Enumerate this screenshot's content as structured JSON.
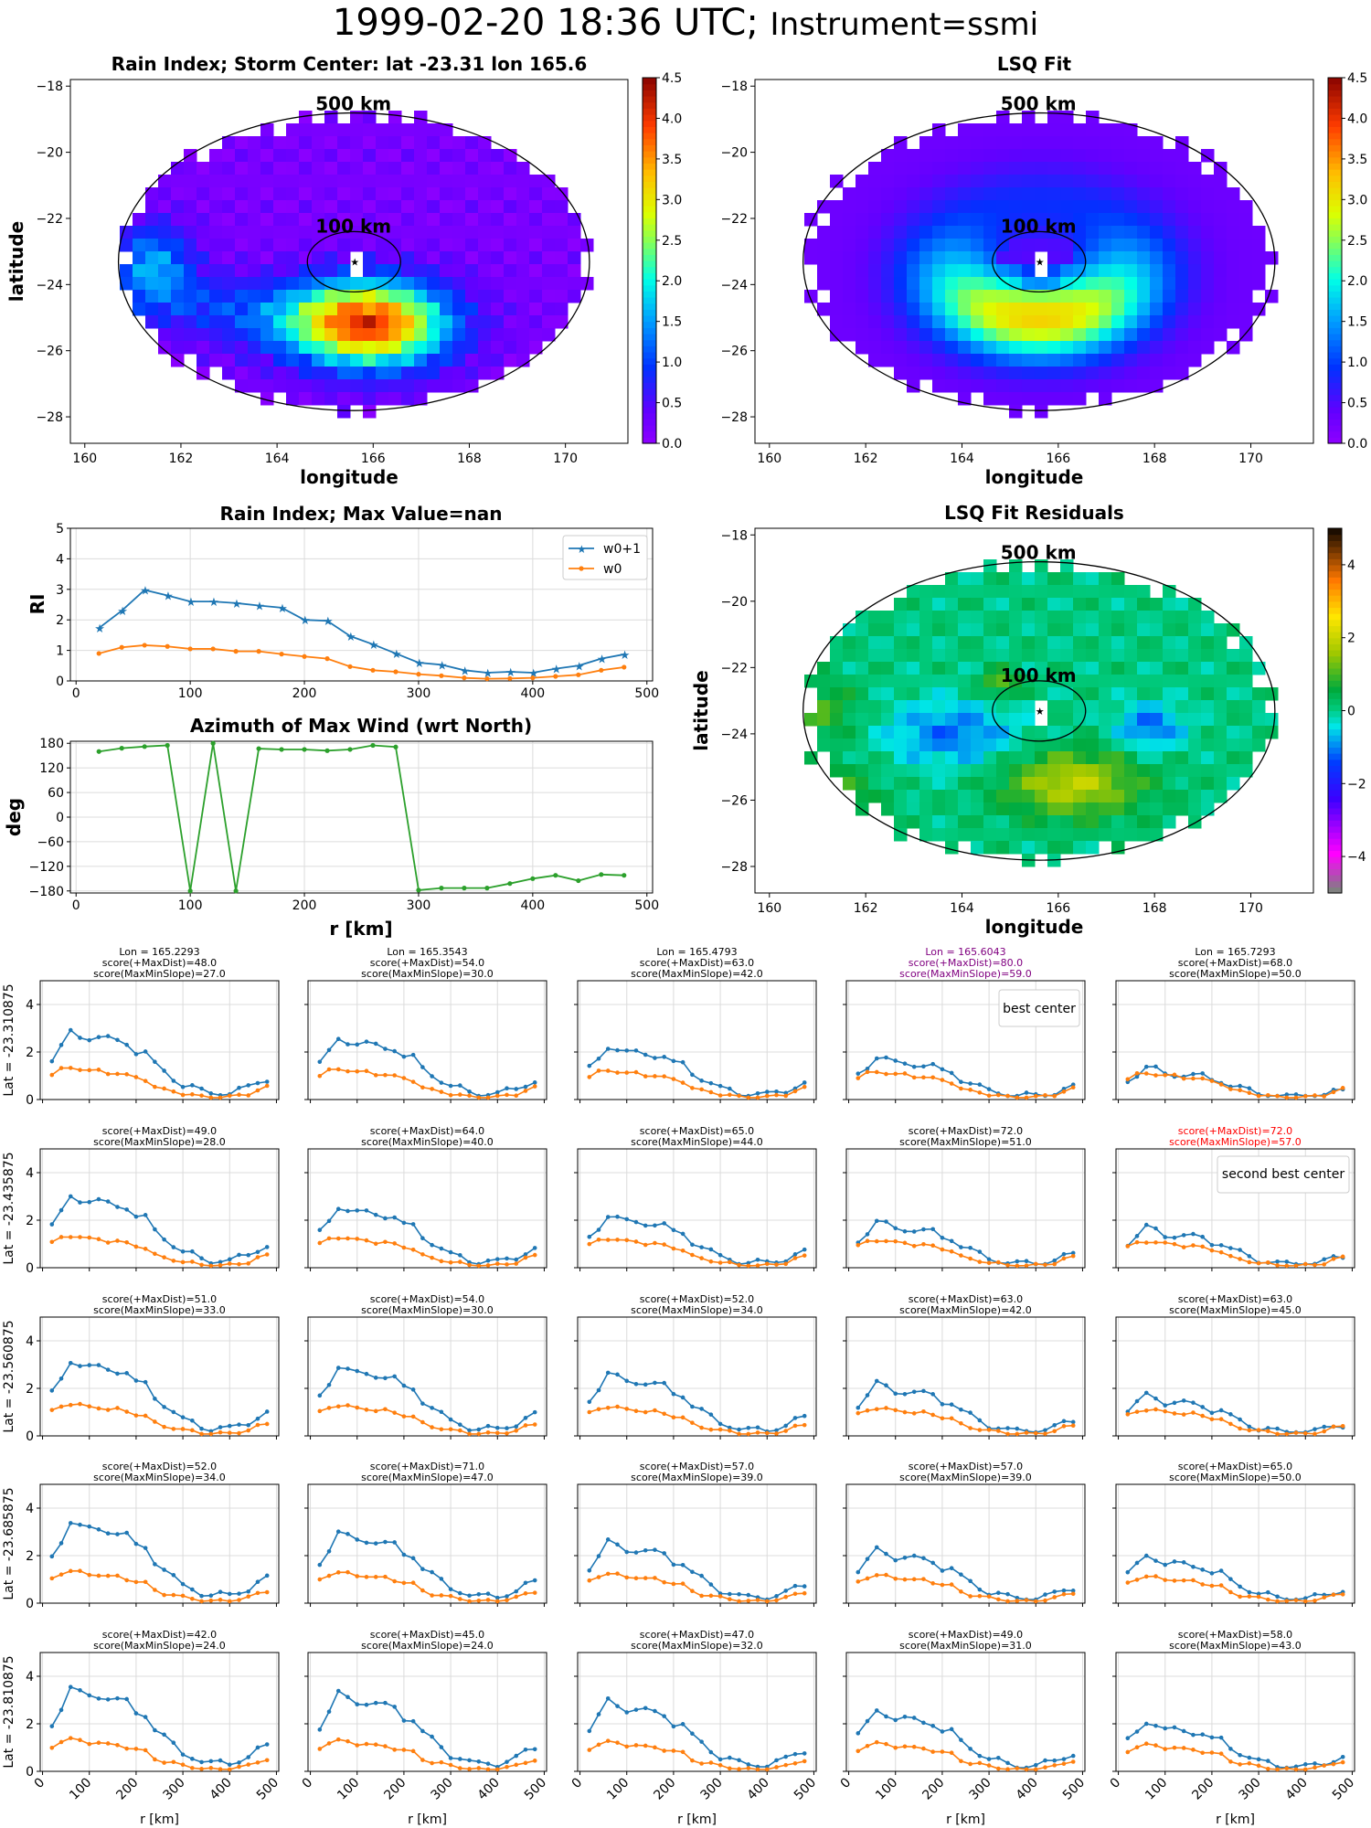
{
  "suptitle": {
    "main": "1999-02-20 18:36 UTC;",
    "instrument": "Instrument=ssmi"
  },
  "maps": [
    {
      "title": "Rain Index; Storm Center: lat -23.31 lon 165.6",
      "xlabel": "longitude",
      "ylabel": "latitude",
      "ring_labels": [
        "500 km",
        "100 km"
      ],
      "colorbar_ticks": [
        "0.0",
        "0.5",
        "1.0",
        "1.5",
        "2.0",
        "2.5",
        "3.0",
        "3.5",
        "4.0",
        "4.5"
      ]
    },
    {
      "title": "LSQ Fit",
      "xlabel": "longitude",
      "ylabel": "",
      "ring_labels": [
        "500 km",
        "100 km"
      ],
      "colorbar_ticks": [
        "0.0",
        "0.5",
        "1.0",
        "1.5",
        "2.0",
        "2.5",
        "3.0",
        "3.5",
        "4.0",
        "4.5"
      ]
    },
    {
      "title": "LSQ Fit Residuals",
      "xlabel": "longitude",
      "ylabel": "latitude",
      "ring_labels": [
        "500 km",
        "100 km"
      ],
      "colorbar_ticks": [
        "−4",
        "−2",
        "0",
        "2",
        "4"
      ]
    }
  ],
  "chart_data": [
    {
      "id": "rain-index-map",
      "type": "heatmap",
      "title": "Rain Index; Storm Center: lat -23.31 lon 165.6",
      "xlabel": "longitude",
      "ylabel": "latitude",
      "xlim": [
        159.7,
        171.3
      ],
      "ylim": [
        -28.8,
        -17.8
      ],
      "xticks": [
        160,
        162,
        164,
        166,
        168,
        170
      ],
      "yticks": [
        -28,
        -26,
        -24,
        -22,
        -20,
        -18
      ],
      "storm_center": {
        "lat": -23.31,
        "lon": 165.6
      },
      "color_range": [
        0,
        4.5
      ],
      "colormap": "gist_rainbow-like",
      "features": [
        {
          "lat": -25.2,
          "lon": 166.0,
          "value": 3.6
        }
      ]
    },
    {
      "id": "lsq-fit-map",
      "type": "heatmap",
      "title": "LSQ Fit",
      "xlabel": "longitude",
      "xlim": [
        159.7,
        171.3
      ],
      "ylim": [
        -28.8,
        -17.8
      ],
      "xticks": [
        160,
        162,
        164,
        166,
        168,
        170
      ],
      "yticks": [
        -28,
        -26,
        -24,
        -22,
        -20,
        -18
      ],
      "color_range": [
        0,
        4.5
      ],
      "features": [
        {
          "lat": -24.8,
          "lon": 165.8,
          "value": 2.4
        }
      ]
    },
    {
      "id": "residuals-map",
      "type": "heatmap",
      "title": "LSQ Fit Residuals",
      "xlabel": "longitude",
      "ylabel": "latitude",
      "xlim": [
        159.7,
        171.3
      ],
      "ylim": [
        -28.8,
        -17.8
      ],
      "xticks": [
        160,
        162,
        164,
        166,
        168,
        170
      ],
      "yticks": [
        -28,
        -26,
        -24,
        -22,
        -20,
        -18
      ],
      "color_range": [
        -5,
        5
      ],
      "features": [
        {
          "lat": -25.5,
          "lon": 166.3,
          "value": 1.8
        },
        {
          "lat": -24.0,
          "lon": 163.8,
          "value": -1.2
        }
      ]
    },
    {
      "id": "rain-index-profile",
      "type": "line",
      "title": "Rain Index; Max Value=nan",
      "xlabel": "",
      "ylabel": "RI",
      "xlim": [
        -5,
        505
      ],
      "ylim": [
        0,
        5
      ],
      "xticks": [
        0,
        100,
        200,
        300,
        400,
        500
      ],
      "yticks": [
        0,
        1,
        2,
        3,
        4,
        5
      ],
      "grid": true,
      "legend": "top-right",
      "x": [
        20,
        40,
        60,
        80,
        100,
        120,
        140,
        160,
        180,
        200,
        220,
        240,
        260,
        280,
        300,
        320,
        340,
        360,
        380,
        400,
        420,
        440,
        460,
        480
      ],
      "series": [
        {
          "name": "w0+1",
          "color": "#1f77b4",
          "marker": "star",
          "values": [
            1.73,
            2.3,
            2.98,
            2.8,
            2.6,
            2.6,
            2.55,
            2.47,
            2.4,
            2.0,
            1.97,
            1.47,
            1.2,
            0.9,
            0.6,
            0.53,
            0.35,
            0.27,
            0.3,
            0.27,
            0.4,
            0.5,
            0.73,
            0.87
          ]
        },
        {
          "name": "w0",
          "color": "#ff7f0e",
          "marker": "dot",
          "values": [
            0.9,
            1.1,
            1.17,
            1.13,
            1.05,
            1.05,
            0.97,
            0.97,
            0.88,
            0.8,
            0.73,
            0.47,
            0.35,
            0.3,
            0.22,
            0.17,
            0.1,
            0.07,
            0.08,
            0.1,
            0.15,
            0.2,
            0.35,
            0.45
          ]
        }
      ]
    },
    {
      "id": "azimuth-profile",
      "type": "line",
      "title": "Azimuth of Max Wind (wrt North)",
      "xlabel": "r [km]",
      "ylabel": "deg",
      "xlim": [
        -5,
        505
      ],
      "ylim": [
        -185,
        185
      ],
      "xticks": [
        0,
        100,
        200,
        300,
        400,
        500
      ],
      "yticks": [
        -180,
        -120,
        -60,
        0,
        60,
        120,
        180
      ],
      "grid": true,
      "x": [
        20,
        40,
        60,
        80,
        100,
        120,
        140,
        160,
        180,
        200,
        220,
        240,
        260,
        280,
        300,
        320,
        340,
        360,
        380,
        400,
        420,
        440,
        460,
        480
      ],
      "series": [
        {
          "color": "#2ca02c",
          "values": [
            160,
            168,
            172,
            175,
            -180,
            180,
            -180,
            167,
            165,
            165,
            162,
            165,
            175,
            171,
            -178,
            -173,
            -173,
            -173,
            -162,
            -150,
            -142,
            -155,
            -140,
            -142
          ]
        }
      ]
    },
    {
      "id": "candidate-grid",
      "type": "line",
      "rows": 5,
      "cols": 5,
      "xlim": [
        -5,
        505
      ],
      "ylim": [
        0,
        5
      ],
      "xticks": [
        0,
        100,
        200,
        300,
        400,
        500
      ],
      "yticks": [
        0,
        2,
        4
      ],
      "row_labels": [
        "Lat = -23.310875",
        "Lat = -23.435875",
        "Lat = -23.560875",
        "Lat = -23.685875",
        "Lat = -23.810875"
      ],
      "col_lons": [
        "Lon = 165.2293",
        "Lon = 165.3543",
        "Lon = 165.4793",
        "Lon = 165.6043",
        "Lon = 165.7293"
      ],
      "xlabel": "r [km]",
      "scores": [
        [
          [
            48,
            27
          ],
          [
            54,
            30
          ],
          [
            63,
            42
          ],
          [
            80,
            59
          ],
          [
            68,
            50
          ]
        ],
        [
          [
            49,
            28
          ],
          [
            64,
            40
          ],
          [
            65,
            44
          ],
          [
            72,
            51
          ],
          [
            72,
            57
          ]
        ],
        [
          [
            51,
            33
          ],
          [
            54,
            30
          ],
          [
            52,
            34
          ],
          [
            63,
            42
          ],
          [
            63,
            45
          ]
        ],
        [
          [
            52,
            34
          ],
          [
            71,
            47
          ],
          [
            57,
            39
          ],
          [
            57,
            39
          ],
          [
            65,
            50
          ]
        ],
        [
          [
            42,
            24
          ],
          [
            45,
            24
          ],
          [
            47,
            32
          ],
          [
            49,
            31
          ],
          [
            58,
            43
          ]
        ]
      ],
      "score_labels": [
        "score(+MaxDist)=",
        "score(MaxMinSlope)="
      ],
      "best_center": {
        "row": 0,
        "col": 3,
        "label": "best center",
        "color": "purple"
      },
      "second_best_center": {
        "row": 1,
        "col": 4,
        "label": "second best center",
        "color": "red"
      },
      "x": [
        20,
        40,
        60,
        80,
        100,
        120,
        140,
        160,
        180,
        200,
        220,
        240,
        260,
        280,
        300,
        320,
        340,
        360,
        380,
        400,
        420,
        440,
        460,
        480
      ]
    }
  ]
}
